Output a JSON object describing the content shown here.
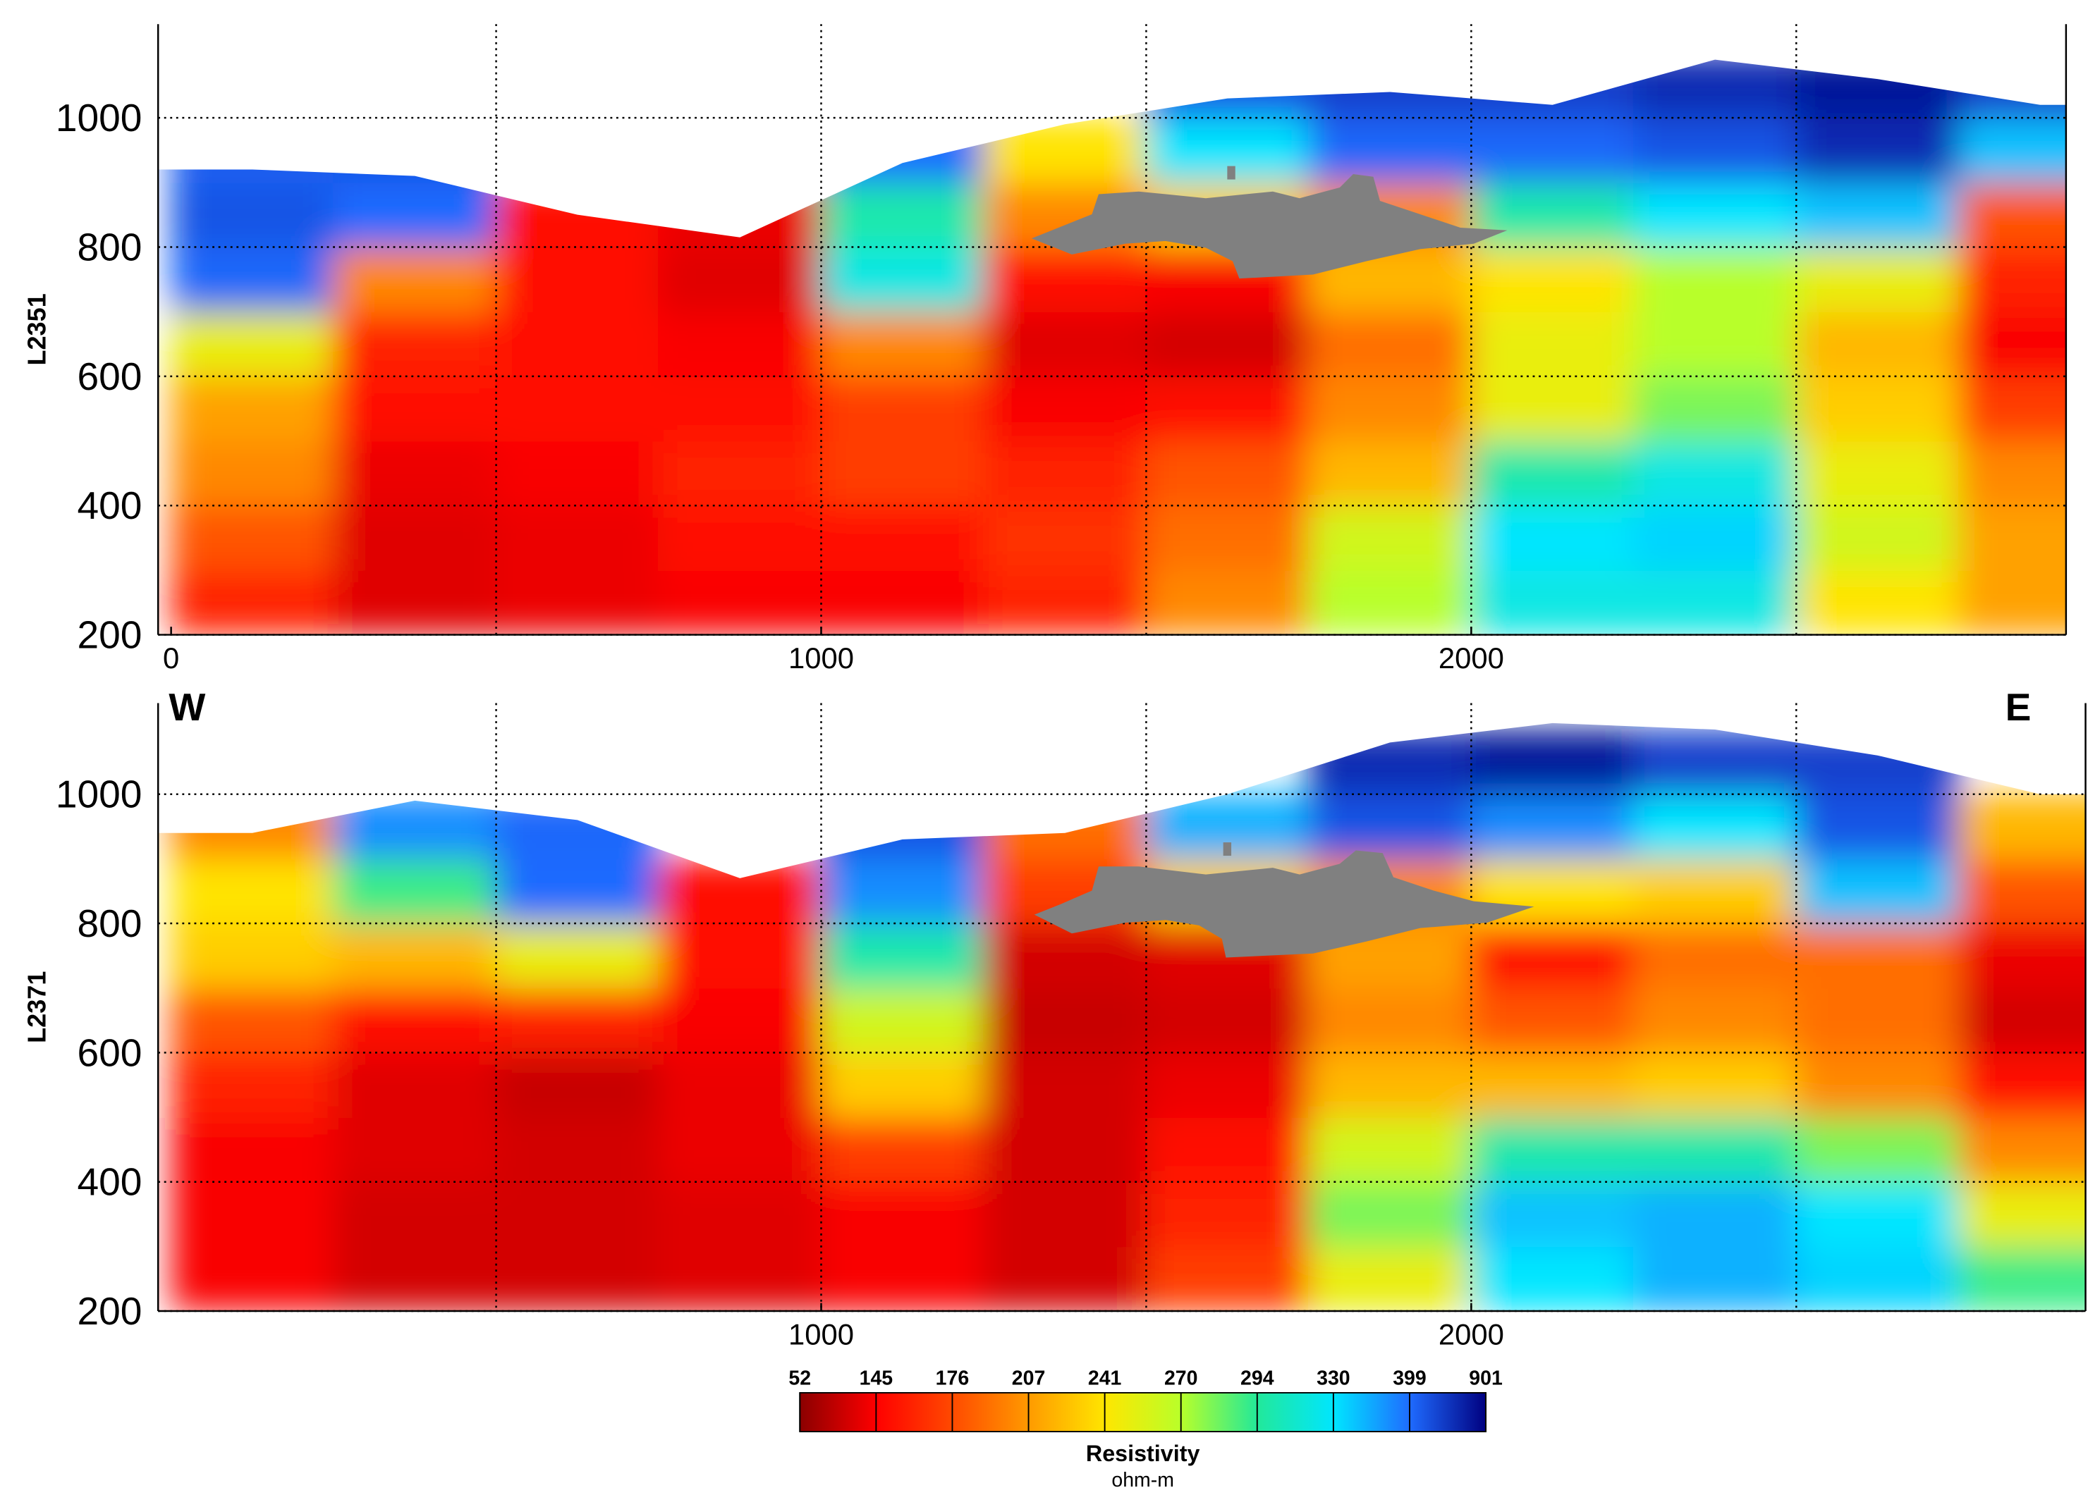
{
  "chart_data": [
    {
      "type": "heatmap",
      "ylabel": "L2351",
      "xlim": [
        -20,
        2915
      ],
      "ylim": [
        200,
        1145
      ],
      "xticks": [
        0,
        1000,
        2000
      ],
      "yticks": [
        200,
        400,
        600,
        800,
        1000
      ],
      "xgrid": [
        500,
        1000,
        1500,
        2000,
        2500
      ],
      "grid": true,
      "xbins": [
        0,
        250,
        500,
        750,
        1000,
        1250,
        1500,
        1750,
        2000,
        2250,
        2500,
        2750,
        3000
      ],
      "ybins": [
        200,
        300,
        400,
        500,
        600,
        700,
        800,
        900,
        1000,
        1100
      ],
      "surface": [
        920,
        910,
        850,
        815,
        930,
        990,
        1030,
        1040,
        1020,
        1090,
        1060,
        1020
      ],
      "z": [
        [
          160,
          120,
          130,
          140,
          140,
          160,
          200,
          270,
          320,
          320,
          240,
          210
        ],
        [
          180,
          120,
          130,
          150,
          150,
          165,
          190,
          260,
          330,
          340,
          260,
          210
        ],
        [
          200,
          130,
          140,
          160,
          170,
          160,
          180,
          220,
          300,
          320,
          250,
          200
        ],
        [
          210,
          150,
          150,
          150,
          170,
          140,
          150,
          200,
          250,
          280,
          230,
          170
        ],
        [
          250,
          160,
          150,
          140,
          200,
          120,
          110,
          190,
          250,
          270,
          220,
          140
        ],
        [
          420,
          200,
          150,
          120,
          320,
          150,
          140,
          220,
          240,
          270,
          250,
          160
        ],
        [
          500,
          400,
          150,
          130,
          300,
          200,
          230,
          200,
          300,
          330,
          350,
          180
        ],
        [
          450,
          500,
          null,
          null,
          400,
          240,
          330,
          420,
          420,
          500,
          700,
          350
        ],
        [
          null,
          null,
          null,
          null,
          null,
          null,
          500,
          600,
          600,
          700,
          800,
          600
        ]
      ]
    },
    {
      "type": "heatmap",
      "ylabel": "L2371",
      "annotations": [
        "W",
        "E"
      ],
      "xlim": [
        -20,
        2945
      ],
      "ylim": [
        200,
        1141
      ],
      "xticks": [
        1000,
        2000
      ],
      "yticks": [
        200,
        400,
        600,
        800,
        1000
      ],
      "xgrid": [
        500,
        1000,
        1500,
        2000,
        2500
      ],
      "grid": true,
      "xbins": [
        0,
        250,
        500,
        750,
        1000,
        1250,
        1500,
        1750,
        2000,
        2250,
        2500,
        2750,
        3000
      ],
      "ybins": [
        200,
        300,
        400,
        500,
        600,
        700,
        800,
        900,
        1000,
        1100
      ],
      "surface": [
        940,
        990,
        960,
        870,
        930,
        940,
        1000,
        1080,
        1110,
        1100,
        1060,
        1000
      ],
      "z": [
        [
          140,
          110,
          110,
          120,
          140,
          110,
          170,
          250,
          330,
          360,
          340,
          290
        ],
        [
          140,
          110,
          110,
          120,
          140,
          110,
          160,
          280,
          350,
          360,
          330,
          250
        ],
        [
          140,
          120,
          110,
          130,
          170,
          110,
          150,
          260,
          300,
          300,
          280,
          200
        ],
        [
          160,
          120,
          100,
          130,
          230,
          110,
          130,
          220,
          220,
          230,
          200,
          150
        ],
        [
          180,
          150,
          160,
          140,
          260,
          100,
          110,
          200,
          180,
          200,
          190,
          110
        ],
        [
          230,
          220,
          250,
          150,
          300,
          110,
          120,
          210,
          150,
          190,
          190,
          130
        ],
        [
          240,
          290,
          400,
          150,
          380,
          170,
          230,
          200,
          240,
          230,
          350,
          180
        ],
        [
          200,
          380,
          420,
          null,
          500,
          190,
          360,
          500,
          380,
          330,
          500,
          220
        ],
        [
          null,
          null,
          null,
          null,
          null,
          null,
          null,
          700,
          800,
          600,
          600,
          null
        ]
      ]
    }
  ],
  "colorbar": {
    "title": "Resistivity",
    "unit": "ohm-m",
    "levels": [
      52,
      145,
      176,
      207,
      241,
      270,
      294,
      330,
      399,
      901
    ],
    "colors": [
      "#8b0000",
      "#ff0000",
      "#ff4a00",
      "#ff9a00",
      "#ffe600",
      "#b8ff2a",
      "#22e89a",
      "#00e6ff",
      "#1f6bff",
      "#00007f"
    ]
  }
}
